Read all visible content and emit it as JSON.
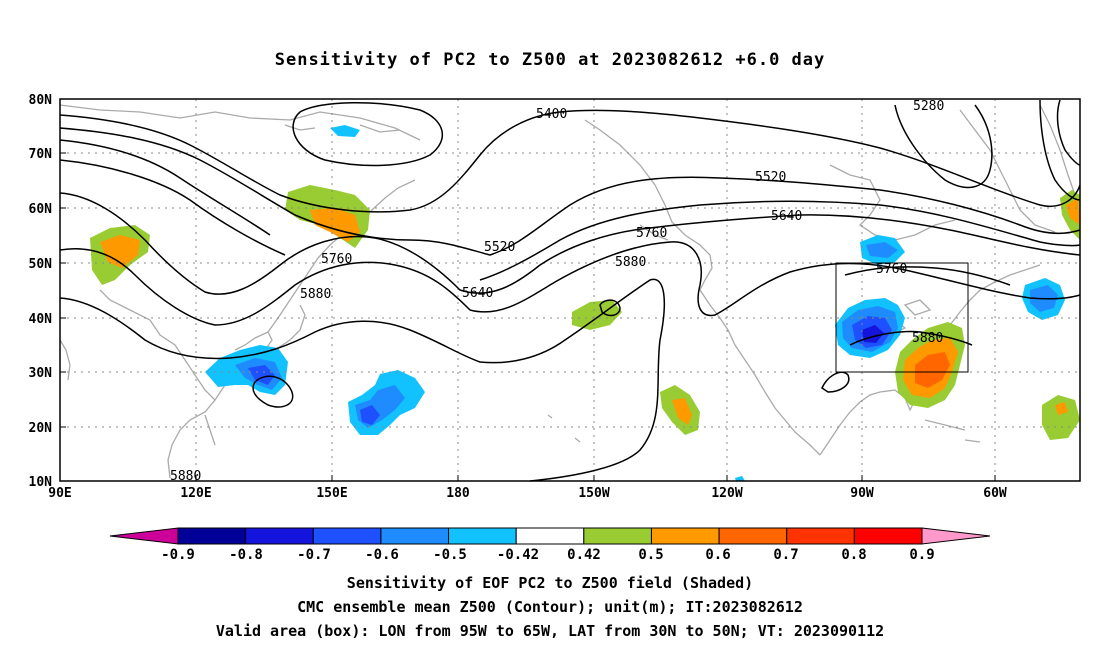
{
  "title": "Sensitivity of PC2 to Z500 at 2023082612 +6.0 day",
  "lat_labels": [
    "80N",
    "70N",
    "60N",
    "50N",
    "40N",
    "30N",
    "20N",
    "10N"
  ],
  "lon_labels": [
    "90E",
    "120E",
    "150E",
    "180",
    "150W",
    "120W",
    "90W",
    "60W"
  ],
  "contour_labels": [
    "5400",
    "5280",
    "5520",
    "5640",
    "5760",
    "5880",
    "5520",
    "5640",
    "5760",
    "5880",
    "5760",
    "5880",
    "5880"
  ],
  "colorbar": {
    "tick_labels": [
      "-0.9",
      "-0.8",
      "-0.7",
      "-0.6",
      "-0.5",
      "-0.42",
      "0.42",
      "0.5",
      "0.6",
      "0.7",
      "0.8",
      "0.9"
    ],
    "colors": [
      "#000099",
      "#1414dd",
      "#1f50ff",
      "#1e8cff",
      "#12c2ff",
      "#ffffff",
      "#99cc33",
      "#ff9900",
      "#ff6600",
      "#ff3300",
      "#ff0000"
    ],
    "low_end_color": "#cc0099",
    "high_end_color": "#ff99cc"
  },
  "footer": {
    "line1": "Sensitivity of EOF PC2 to Z500 field (Shaded)",
    "line2": "CMC ensemble mean Z500 (Contour); unit(m); IT:2023082612",
    "line3": "Valid area (box): LON from 95W to 65W, LAT from 30N to 50N; VT: 2023090112"
  },
  "valid_area": {
    "lon_west": -95,
    "lon_east": -65,
    "lat_south": 30,
    "lat_north": 50
  }
}
